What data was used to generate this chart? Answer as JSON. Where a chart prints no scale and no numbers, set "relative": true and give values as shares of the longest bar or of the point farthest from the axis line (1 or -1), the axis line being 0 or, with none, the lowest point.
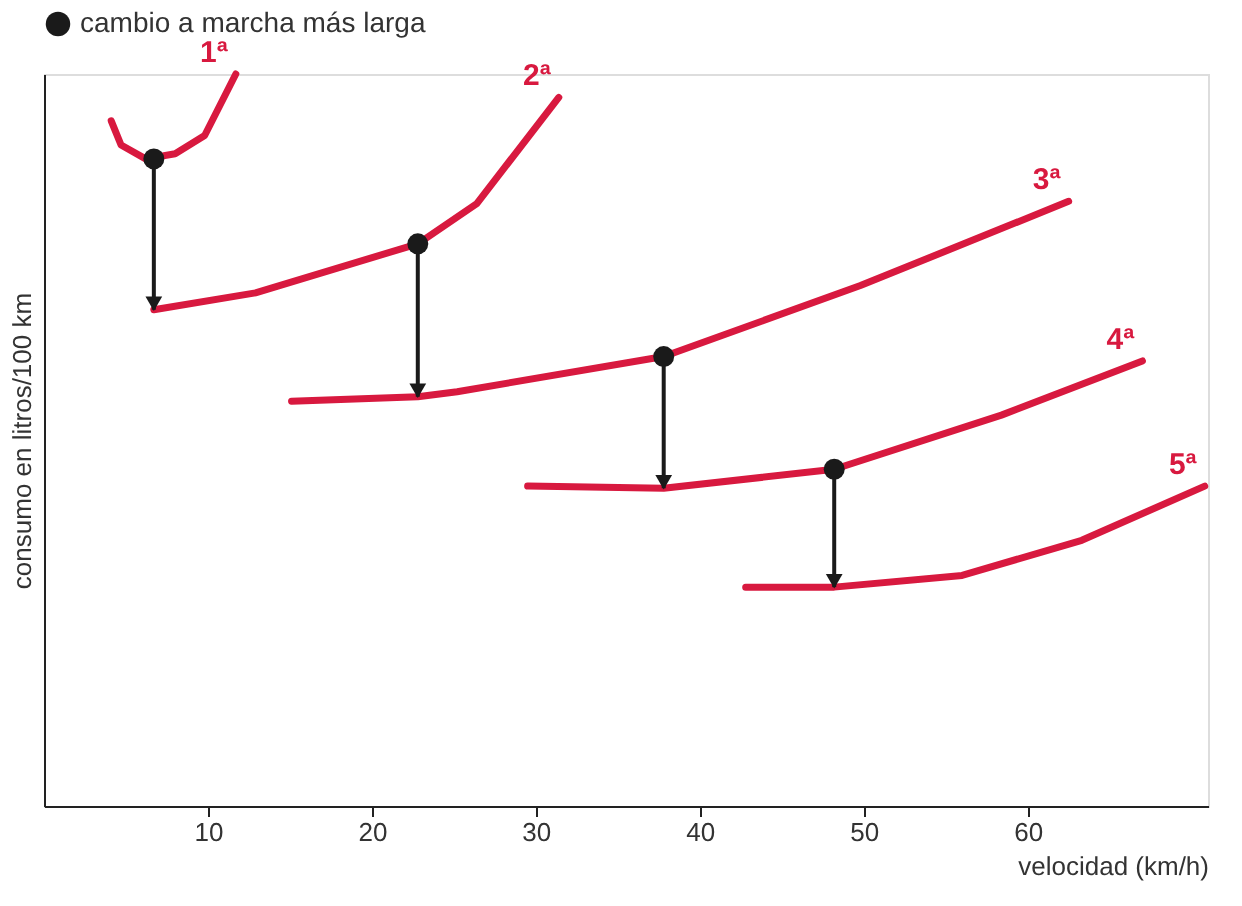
{
  "chart_data": {
    "type": "line",
    "relative": true,
    "xlabel": "velocidad (km/h)",
    "ylabel": "consumo en litros/100 km",
    "xlim": [
      0,
      71
    ],
    "xticks": [
      10,
      20,
      30,
      40,
      50,
      60
    ],
    "grid": false,
    "legend": "top",
    "line_style": "solid",
    "series": [
      {
        "name": "1ª",
        "color": "#d8193f",
        "x": [
          4.1,
          4.7,
          6.2,
          8.0,
          9.8,
          11.7
        ],
        "values": [
          0.936,
          0.903,
          0.884,
          0.891,
          0.916,
          1.0
        ]
      },
      {
        "name": "2ª",
        "color": "#d8193f",
        "x": [
          6.7,
          12.9,
          22.8,
          26.4,
          31.4
        ],
        "values": [
          0.678,
          0.701,
          0.768,
          0.823,
          0.968
        ]
      },
      {
        "name": "3ª",
        "color": "#d8193f",
        "x": [
          15.1,
          22.8,
          25.2,
          37.8,
          49.8,
          62.5
        ],
        "values": [
          0.553,
          0.559,
          0.566,
          0.614,
          0.711,
          0.826
        ]
      },
      {
        "name": "4ª",
        "color": "#d8193f",
        "x": [
          29.5,
          37.8,
          48.2,
          58.4,
          67.0
        ],
        "values": [
          0.437,
          0.434,
          0.46,
          0.534,
          0.608
        ]
      },
      {
        "name": "5ª",
        "color": "#d8193f",
        "x": [
          42.8,
          48.2,
          56.0,
          63.3,
          70.8
        ],
        "values": [
          0.299,
          0.299,
          0.315,
          0.363,
          0.437
        ]
      },
      {
        "name": "cambio a marcha más larga",
        "type": "scatter",
        "color": "#1a1a1a",
        "x": [
          6.7,
          22.8,
          37.8,
          48.2
        ],
        "values": [
          0.884,
          0.768,
          0.614,
          0.46
        ]
      }
    ]
  }
}
